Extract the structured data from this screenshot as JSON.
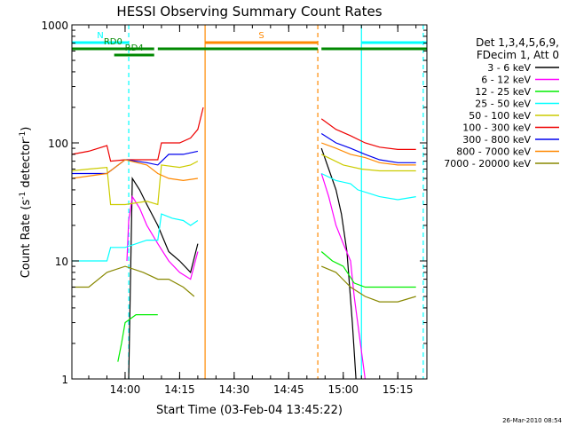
{
  "chart_data": {
    "type": "line",
    "title": "HESSI Observing Summary Count Rates",
    "xlabel": "Start Time (03-Feb-04 13:45:22)",
    "ylabel_main": "Count Rate (s",
    "ylabel_exp1": "-1",
    "ylabel_mid": " detector",
    "ylabel_exp2": "-1",
    "ylabel_end": ")",
    "timestamp": "26-Mar-2010 08:54",
    "y_scale": "log",
    "ylim": [
      1,
      1000
    ],
    "xlim": [
      "13:45:22",
      "15:23:00"
    ],
    "x_ticks": [
      "14:00",
      "14:15",
      "14:30",
      "14:45",
      "15:00",
      "15:15"
    ],
    "y_ticks": [
      "1",
      "10",
      "100",
      "1000"
    ],
    "grid": false,
    "legend_placement": "right",
    "legend_header": [
      "Det 1,3,4,5,6,9,",
      "FDecim 1, Att 0"
    ],
    "series": [
      {
        "name": "3 - 6 keV",
        "color": "#000000",
        "points": [
          [
            "14:01:00",
            1
          ],
          [
            "14:02:00",
            50
          ],
          [
            "14:04:00",
            40
          ],
          [
            "14:06:00",
            30
          ],
          [
            "14:09:00",
            20
          ],
          [
            "14:12:00",
            12
          ],
          [
            "14:15:00",
            10
          ],
          [
            "14:18:00",
            8
          ],
          [
            "14:20:00",
            14
          ],
          [
            "14:21:00",
            null
          ],
          [
            "14:53:30",
            null
          ],
          [
            "14:54:00",
            90
          ],
          [
            "14:56:00",
            60
          ],
          [
            "14:58:00",
            40
          ],
          [
            "14:59:30",
            25
          ],
          [
            "15:01:00",
            12
          ],
          [
            "15:02:30",
            3
          ],
          [
            "15:03:30",
            1
          ]
        ]
      },
      {
        "name": "6 - 12 keV",
        "color": "#ff00ff",
        "points": [
          [
            "14:00:30",
            10
          ],
          [
            "14:01:00",
            22
          ],
          [
            "14:02:00",
            35
          ],
          [
            "14:04:00",
            28
          ],
          [
            "14:06:00",
            20
          ],
          [
            "14:09:00",
            14
          ],
          [
            "14:12:00",
            10
          ],
          [
            "14:15:00",
            8
          ],
          [
            "14:18:00",
            7
          ],
          [
            "14:20:00",
            12
          ],
          [
            "14:21:00",
            null
          ],
          [
            "14:53:30",
            null
          ],
          [
            "14:54:00",
            55
          ],
          [
            "14:56:00",
            35
          ],
          [
            "14:58:00",
            20
          ],
          [
            "15:00:00",
            14
          ],
          [
            "15:02:00",
            10
          ],
          [
            "15:03:00",
            5
          ],
          [
            "15:06:00",
            1
          ]
        ]
      },
      {
        "name": "12 - 25 keV",
        "color": "#00ee00",
        "points": [
          [
            "13:58:00",
            1.4
          ],
          [
            "13:59:00",
            2
          ],
          [
            "14:00:00",
            3
          ],
          [
            "14:03:00",
            3.5
          ],
          [
            "14:06:00",
            3.5
          ],
          [
            "14:09:00",
            3.5
          ],
          [
            "14:21:00",
            null
          ],
          [
            "14:53:30",
            null
          ],
          [
            "14:54:00",
            12
          ],
          [
            "14:57:00",
            10
          ],
          [
            "15:00:00",
            9
          ],
          [
            "15:03:00",
            6.5
          ],
          [
            "15:06:00",
            6
          ],
          [
            "15:10:00",
            6
          ],
          [
            "15:15:00",
            6
          ],
          [
            "15:20:00",
            6
          ]
        ]
      },
      {
        "name": "25 - 50 keV",
        "color": "#00ffff",
        "points": [
          [
            "13:45:22",
            10
          ],
          [
            "13:55:00",
            10
          ],
          [
            "13:56:00",
            13
          ],
          [
            "14:00:00",
            13
          ],
          [
            "14:06:00",
            15
          ],
          [
            "14:09:00",
            15
          ],
          [
            "14:10:00",
            25
          ],
          [
            "14:13:00",
            23
          ],
          [
            "14:16:00",
            22
          ],
          [
            "14:18:00",
            20
          ],
          [
            "14:20:00",
            22
          ],
          [
            "14:21:00",
            null
          ],
          [
            "14:53:30",
            null
          ],
          [
            "14:54:00",
            55
          ],
          [
            "14:58:00",
            48
          ],
          [
            "15:02:00",
            45
          ],
          [
            "15:04:00",
            40
          ],
          [
            "15:10:00",
            35
          ],
          [
            "15:15:00",
            33
          ],
          [
            "15:20:00",
            35
          ]
        ]
      },
      {
        "name": "50 - 100 keV",
        "color": "#cccc00",
        "points": [
          [
            "13:45:22",
            58
          ],
          [
            "13:50:00",
            60
          ],
          [
            "13:55:00",
            62
          ],
          [
            "13:56:00",
            30
          ],
          [
            "14:00:00",
            30
          ],
          [
            "14:06:00",
            32
          ],
          [
            "14:09:00",
            30
          ],
          [
            "14:10:00",
            65
          ],
          [
            "14:15:00",
            62
          ],
          [
            "14:18:00",
            65
          ],
          [
            "14:20:00",
            70
          ],
          [
            "14:21:00",
            null
          ],
          [
            "14:53:30",
            null
          ],
          [
            "14:54:00",
            80
          ],
          [
            "15:00:00",
            65
          ],
          [
            "15:05:00",
            60
          ],
          [
            "15:10:00",
            58
          ],
          [
            "15:15:00",
            58
          ],
          [
            "15:20:00",
            58
          ]
        ]
      },
      {
        "name": "100 - 300 keV",
        "color": "#ee0000",
        "points": [
          [
            "13:45:22",
            80
          ],
          [
            "13:50:00",
            85
          ],
          [
            "13:55:00",
            95
          ],
          [
            "13:56:00",
            70
          ],
          [
            "14:00:00",
            72
          ],
          [
            "14:06:00",
            72
          ],
          [
            "14:09:00",
            72
          ],
          [
            "14:10:00",
            100
          ],
          [
            "14:15:00",
            100
          ],
          [
            "14:18:00",
            110
          ],
          [
            "14:20:00",
            130
          ],
          [
            "14:21:30",
            200
          ],
          [
            "14:22:00",
            null
          ],
          [
            "14:53:30",
            null
          ],
          [
            "14:54:00",
            160
          ],
          [
            "14:58:00",
            130
          ],
          [
            "15:02:00",
            115
          ],
          [
            "15:06:00",
            100
          ],
          [
            "15:10:00",
            92
          ],
          [
            "15:15:00",
            88
          ],
          [
            "15:20:00",
            88
          ]
        ]
      },
      {
        "name": "300 - 800 keV",
        "color": "#0000ee",
        "points": [
          [
            "13:45:22",
            55
          ],
          [
            "13:55:00",
            55
          ],
          [
            "14:00:00",
            72
          ],
          [
            "14:06:00",
            68
          ],
          [
            "14:09:00",
            65
          ],
          [
            "14:12:00",
            80
          ],
          [
            "14:16:00",
            80
          ],
          [
            "14:20:00",
            85
          ],
          [
            "14:21:00",
            null
          ],
          [
            "14:53:30",
            null
          ],
          [
            "14:54:00",
            120
          ],
          [
            "14:58:00",
            100
          ],
          [
            "15:02:00",
            90
          ],
          [
            "15:06:00",
            80
          ],
          [
            "15:10:00",
            72
          ],
          [
            "15:15:00",
            68
          ],
          [
            "15:20:00",
            68
          ]
        ]
      },
      {
        "name": "800 - 7000 keV",
        "color": "#ff8800",
        "points": [
          [
            "13:45:22",
            50
          ],
          [
            "13:55:00",
            55
          ],
          [
            "14:00:00",
            72
          ],
          [
            "14:06:00",
            65
          ],
          [
            "14:09:00",
            55
          ],
          [
            "14:12:00",
            50
          ],
          [
            "14:16:00",
            48
          ],
          [
            "14:20:00",
            50
          ],
          [
            "14:21:00",
            null
          ],
          [
            "14:53:30",
            null
          ],
          [
            "14:54:00",
            100
          ],
          [
            "14:58:00",
            90
          ],
          [
            "15:02:00",
            80
          ],
          [
            "15:06:00",
            75
          ],
          [
            "15:10:00",
            68
          ],
          [
            "15:15:00",
            65
          ],
          [
            "15:20:00",
            65
          ]
        ]
      },
      {
        "name": "7000 - 20000 keV",
        "color": "#888800",
        "points": [
          [
            "13:45:22",
            6
          ],
          [
            "13:50:00",
            6
          ],
          [
            "13:55:00",
            8
          ],
          [
            "14:00:00",
            9
          ],
          [
            "14:05:00",
            8
          ],
          [
            "14:09:00",
            7
          ],
          [
            "14:12:00",
            7
          ],
          [
            "14:16:00",
            6
          ],
          [
            "14:19:00",
            5
          ],
          [
            "14:21:00",
            null
          ],
          [
            "14:53:30",
            null
          ],
          [
            "14:54:00",
            9
          ],
          [
            "14:58:00",
            8
          ],
          [
            "15:02:00",
            6
          ],
          [
            "15:06:00",
            5
          ],
          [
            "15:10:00",
            4.5
          ],
          [
            "15:15:00",
            4.5
          ],
          [
            "15:20:00",
            5
          ]
        ]
      }
    ],
    "flag_bars": [
      {
        "label": "N",
        "color": "#00ffff",
        "level": 1.0,
        "segments": [
          [
            "13:45:22",
            "14:01:00"
          ],
          [
            "15:05:00",
            "15:23:00"
          ]
        ]
      },
      {
        "label": "S",
        "color": "#ff8800",
        "level": 1.0,
        "segments": [
          [
            "14:22:00",
            "14:53:00"
          ]
        ]
      },
      {
        "label": "RD0",
        "color": "#008800",
        "level": 0.5,
        "segments": [
          [
            "13:45:22",
            "14:08:00"
          ],
          [
            "14:09:00",
            "14:53:00"
          ],
          [
            "14:54:00",
            "15:23:00"
          ]
        ]
      },
      {
        "label": "RD4",
        "color": "#008800",
        "level": 0.0,
        "segments": [
          [
            "13:57:00",
            "14:08:00"
          ]
        ]
      }
    ],
    "vertical_markers": [
      {
        "time": "14:01:00",
        "color": "#00ffff",
        "style": "dashed"
      },
      {
        "time": "14:22:00",
        "color": "#ff8800",
        "style": "solid"
      },
      {
        "time": "14:53:00",
        "color": "#ff8800",
        "style": "dashed"
      },
      {
        "time": "15:05:00",
        "color": "#00ffff",
        "style": "solid"
      },
      {
        "time": "15:22:00",
        "color": "#00ffff",
        "style": "dashed"
      }
    ]
  }
}
